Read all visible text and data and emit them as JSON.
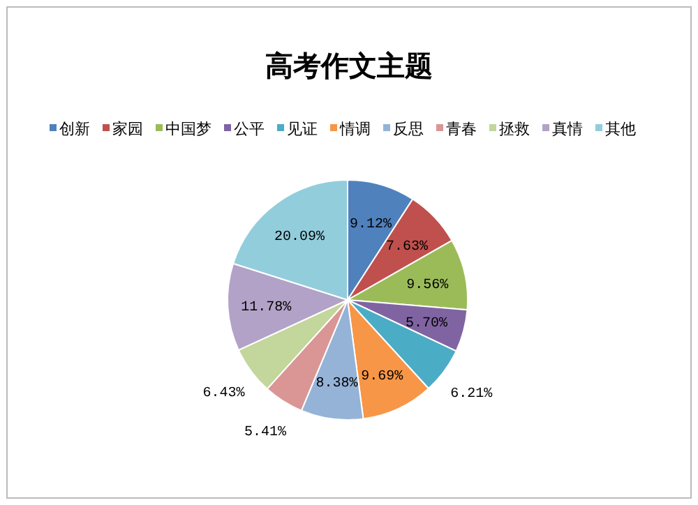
{
  "chart_data": {
    "type": "pie",
    "title": "高考作文主题",
    "legend": "top",
    "categories": [
      "创新",
      "家园",
      "中国梦",
      "公平",
      "见证",
      "情调",
      "反思",
      "青春",
      "拯救",
      "真情",
      "其他"
    ],
    "values": [
      9.12,
      7.63,
      9.56,
      5.7,
      6.21,
      9.69,
      8.38,
      5.41,
      6.43,
      11.78,
      20.09
    ],
    "value_labels": [
      "9.12%",
      "7.63%",
      "9.56%",
      "5.70%",
      "6.21%",
      "9.69%",
      "8.38%",
      "5.41%",
      "6.43%",
      "11.78%",
      "20.09%"
    ],
    "colors": [
      "#4f81bd",
      "#c0504d",
      "#9bbb59",
      "#8064a2",
      "#4bacc6",
      "#f79646",
      "#95b3d7",
      "#d99694",
      "#c3d69b",
      "#b2a2c7",
      "#92cddc"
    ]
  }
}
